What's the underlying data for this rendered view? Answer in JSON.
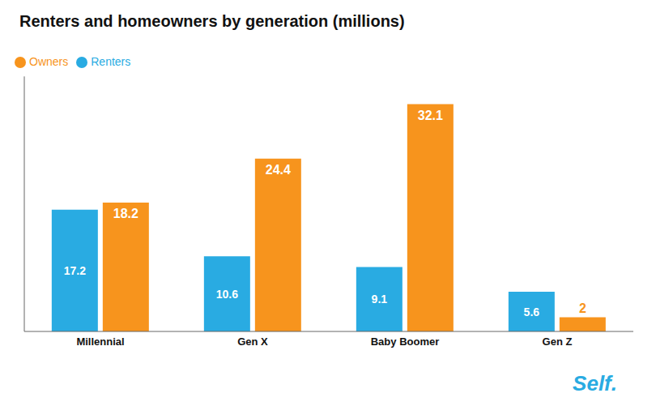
{
  "chart_data": {
    "type": "bar",
    "title": "Renters and homeowners by generation (millions)",
    "categories": [
      "Millennial",
      "Gen X",
      "Baby Boomer",
      "Gen Z"
    ],
    "series": [
      {
        "name": "Renters",
        "color": "#29ABE2",
        "values": [
          17.2,
          10.6,
          9.1,
          5.6
        ]
      },
      {
        "name": "Owners",
        "color": "#F7941D",
        "values": [
          18.2,
          24.4,
          32.1,
          2.0
        ]
      }
    ],
    "ylim": [
      0,
      36
    ],
    "legend": "upper left",
    "data_labels": true,
    "tick_labels": "x",
    "annotations": [
      "Self."
    ]
  }
}
